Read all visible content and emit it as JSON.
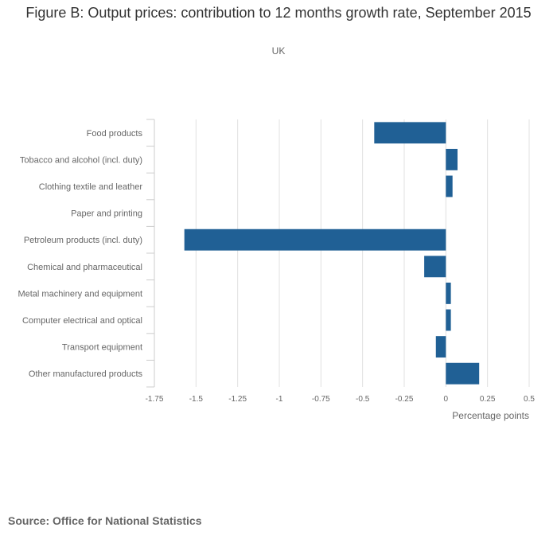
{
  "chart_data": {
    "type": "bar",
    "orientation": "horizontal",
    "title": "Figure B: Output prices: contribution to 12 months growth rate, September 2015",
    "subtitle": "UK",
    "xlabel": "Percentage points",
    "ylabel": "",
    "categories": [
      "Food products",
      "Tobacco and alcohol (incl. duty)",
      "Clothing textile and leather",
      "Paper and printing",
      "Petroleum products (incl. duty)",
      "Chemical and pharmaceutical",
      "Metal machinery and equipment",
      "Computer electrical and optical",
      "Transport equipment",
      "Other manufactured products"
    ],
    "values": [
      -0.43,
      0.07,
      0.04,
      0.0,
      -1.57,
      -0.13,
      0.03,
      0.03,
      -0.06,
      0.2
    ],
    "xlim": [
      -1.75,
      0.5
    ],
    "ticks": [
      -1.75,
      -1.5,
      -1.25,
      -1,
      -0.75,
      -0.5,
      -0.25,
      0,
      0.25,
      0.5
    ],
    "tick_labels": [
      "-1.75",
      "-1.5",
      "-1.25",
      "-1",
      "-0.75",
      "-0.5",
      "-0.25",
      "0",
      "0.25",
      "0.5"
    ],
    "grid": true,
    "legend": "none",
    "bar_color": "#206095"
  },
  "footer": {
    "source": "Source: Office for National Statistics"
  }
}
